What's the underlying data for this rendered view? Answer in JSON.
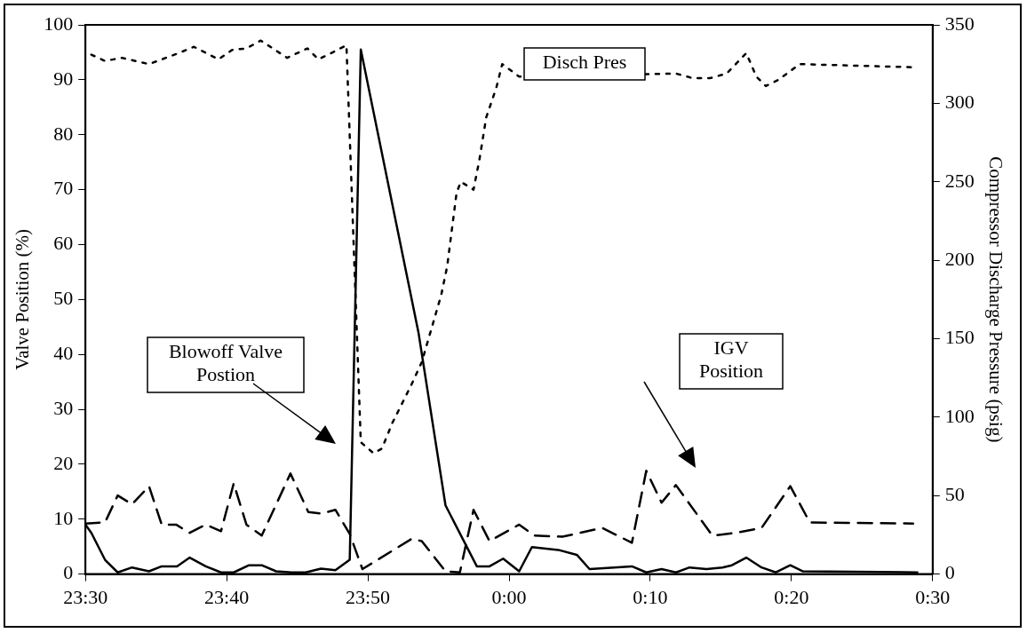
{
  "chart_data": {
    "type": "line",
    "ylabel": "Valve Position (%)",
    "y2label": "Compressor Discharge Pressure (psig)",
    "xlim": [
      "2000-01-01T23:30",
      "2000-01-02T00:30"
    ],
    "xticks": [
      {
        "value": "2000-01-01T23:30",
        "label": "23:30"
      },
      {
        "value": "2000-01-01T23:40",
        "label": "23:40"
      },
      {
        "value": "2000-01-01T23:50",
        "label": "23:50"
      },
      {
        "value": "2000-01-02T00:00",
        "label": "0:00"
      },
      {
        "value": "2000-01-02T00:10",
        "label": "0:10"
      },
      {
        "value": "2000-01-02T00:20",
        "label": "0:20"
      },
      {
        "value": "2000-01-02T00:30",
        "label": "0:30"
      }
    ],
    "ylim": [
      0,
      100
    ],
    "yticks": [
      0,
      10,
      20,
      30,
      40,
      50,
      60,
      70,
      80,
      90,
      100
    ],
    "y2lim": [
      0,
      350
    ],
    "y2ticks": [
      0,
      50,
      100,
      150,
      200,
      250,
      300,
      350
    ],
    "grid": false,
    "legend": false,
    "marker": "none",
    "annotations": [
      "Blowoff Valve Postion",
      "IGV Position"
    ],
    "series": [
      {
        "color": "#000000",
        "line_style": "solid",
        "x": [
          "2000-01-01T23:30:00",
          "2000-01-01T23:30:25",
          "2000-01-01T23:31:23",
          "2000-01-01T23:32:17",
          "2000-01-01T23:33:18",
          "2000-01-01T23:34:30",
          "2000-01-01T23:35:24",
          "2000-01-01T23:36:29",
          "2000-01-01T23:37:23",
          "2000-01-01T23:38:31",
          "2000-01-01T23:39:36",
          "2000-01-01T23:40:30",
          "2000-01-01T23:41:35",
          "2000-01-01T23:42:29",
          "2000-01-01T23:43:30",
          "2000-01-01T23:44:35",
          "2000-01-01T23:45:36",
          "2000-01-01T23:46:41",
          "2000-01-01T23:47:42",
          "2000-01-01T23:48:43",
          "2000-01-01T23:49:30",
          "2000-01-01T23:53:35",
          "2000-01-01T23:55:30",
          "2000-01-01T23:57:43",
          "2000-01-01T23:58:37",
          "2000-01-01T23:59:35",
          "2000-01-02T00:00:43",
          "2000-01-02T00:01:37",
          "2000-01-02T00:03:29",
          "2000-01-02T00:04:48",
          "2000-01-02T00:05:42",
          "2000-01-02T00:08:42",
          "2000-01-02T00:09:43",
          "2000-01-02T00:10:48",
          "2000-01-02T00:11:49",
          "2000-01-02T00:12:47",
          "2000-01-02T00:13:59",
          "2000-01-02T00:15:07",
          "2000-01-02T00:15:47",
          "2000-01-02T00:16:48",
          "2000-01-02T00:17:53",
          "2000-01-02T00:18:54",
          "2000-01-02T00:19:55",
          "2000-01-02T00:20:49",
          "2000-01-02T00:28:55"
        ],
        "values": [
          9,
          7.5,
          2.6,
          0.3,
          1.2,
          0.5,
          1.4,
          1.4,
          3,
          1.4,
          0.3,
          0.3,
          1.6,
          1.6,
          0.5,
          0.3,
          0.3,
          1,
          0.7,
          2.6,
          95.5,
          44,
          12.5,
          1.4,
          1.4,
          2.8,
          0.5,
          4.9,
          4.4,
          3.5,
          0.9,
          1.4,
          0.3,
          0.9,
          0.3,
          1.2,
          0.9,
          1.2,
          1.6,
          3,
          1.2,
          0.3,
          1.6,
          0.5,
          0.3
        ]
      },
      {
        "color": "#000000",
        "line_style": "dashed",
        "x": [
          "2000-01-01T23:30:00",
          "2000-01-01T23:31:23",
          "2000-01-01T23:32:17",
          "2000-01-01T23:33:18",
          "2000-01-01T23:34:30",
          "2000-01-01T23:35:24",
          "2000-01-01T23:36:25",
          "2000-01-01T23:37:23",
          "2000-01-01T23:38:31",
          "2000-01-01T23:39:36",
          "2000-01-01T23:40:30",
          "2000-01-01T23:41:24",
          "2000-01-01T23:42:29",
          "2000-01-01T23:44:31",
          "2000-01-01T23:45:47",
          "2000-01-01T23:46:41",
          "2000-01-01T23:47:42",
          "2000-01-01T23:48:43",
          "2000-01-01T23:49:37",
          "2000-01-01T23:53:06",
          "2000-01-01T23:53:49",
          "2000-01-01T23:55:30",
          "2000-01-01T23:56:31",
          "2000-01-01T23:57:29",
          "2000-01-01T23:58:37",
          "2000-01-02T00:00:43",
          "2000-01-02T00:01:48",
          "2000-01-02T00:03:47",
          "2000-01-02T00:06:36",
          "2000-01-02T00:08:42",
          "2000-01-02T00:09:43",
          "2000-01-02T00:10:48",
          "2000-01-02T00:11:49",
          "2000-01-02T00:14:24",
          "2000-01-02T00:16:05",
          "2000-01-02T00:17:53",
          "2000-01-02T00:19:55",
          "2000-01-02T00:21:18",
          "2000-01-02T00:28:37"
        ],
        "values": [
          9.2,
          9.4,
          14.3,
          12.7,
          16,
          9,
          9,
          7.5,
          9,
          7.8,
          16.5,
          9,
          7,
          18.3,
          11.3,
          11,
          11.7,
          7.3,
          0.9,
          6.4,
          6,
          0.5,
          0.3,
          11.7,
          6,
          9,
          7,
          6.8,
          8.4,
          5.7,
          18.8,
          13,
          16.2,
          7,
          7.5,
          8.4,
          16,
          9.4,
          9.2
        ]
      },
      {
        "name": "Disch Pres",
        "color": "#000000",
        "line_style": "dotted",
        "axis": "y2",
        "x": [
          "2000-01-01T23:30:25",
          "2000-01-01T23:31:23",
          "2000-01-01T23:32:35",
          "2000-01-01T23:34:30",
          "2000-01-01T23:35:42",
          "2000-01-01T23:36:36",
          "2000-01-01T23:37:41",
          "2000-01-01T23:39:25",
          "2000-01-01T23:40:23",
          "2000-01-01T23:41:24",
          "2000-01-01T23:42:25",
          "2000-01-01T23:44:17",
          "2000-01-01T23:45:43",
          "2000-01-01T23:46:30",
          "2000-01-01T23:47:24",
          "2000-01-01T23:48:29",
          "2000-01-01T23:49:30",
          "2000-01-01T23:50:24",
          "2000-01-01T23:51:00",
          "2000-01-01T23:51:43",
          "2000-01-01T23:52:23",
          "2000-01-01T23:53:06",
          "2000-01-01T23:53:49",
          "2000-01-01T23:55:12",
          "2000-01-01T23:55:37",
          "2000-01-01T23:56:17",
          "2000-01-01T23:56:35",
          "2000-01-01T23:57:29",
          "2000-01-01T23:57:54",
          "2000-01-01T23:58:23",
          "2000-01-01T23:59:06",
          "2000-01-01T23:59:31",
          "2000-01-02T00:00:43",
          "2000-01-02T00:11:49",
          "2000-01-02T00:13:01",
          "2000-01-02T00:14:13",
          "2000-01-02T00:15:25",
          "2000-01-02T00:16:48",
          "2000-01-02T00:17:31",
          "2000-01-02T00:18:11",
          "2000-01-02T00:19:05",
          "2000-01-02T00:20:35",
          "2000-01-02T00:28:37"
        ],
        "values": [
          331,
          327,
          329,
          325,
          329,
          332,
          336,
          328,
          334,
          335,
          340,
          329,
          335,
          328,
          332,
          337,
          84,
          77,
          80,
          96,
          108,
          121,
          135,
          178,
          196,
          243,
          250,
          245,
          264,
          291,
          310,
          325,
          317,
          319,
          316,
          316,
          319,
          332,
          317,
          311,
          315,
          325,
          323
        ]
      }
    ]
  }
}
